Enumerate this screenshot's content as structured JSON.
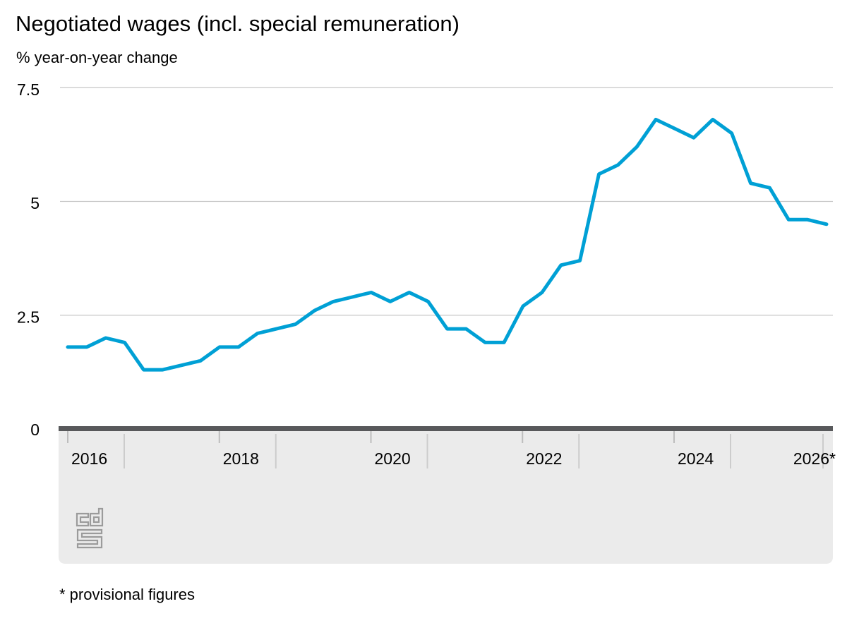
{
  "page": {
    "title": "Negotiated wages (incl. special remuneration)",
    "subtitle": "% year-on-year change",
    "footnote": "* provisional figures"
  },
  "branding": {
    "logo": "cbs-logo"
  },
  "style": {
    "line_color": "#00a0d5",
    "axis_bar_color": "#58595b",
    "band_color": "#ebebeb",
    "grid_color": "#c6c6c6",
    "short_tick_color": "#bdbdbd",
    "long_tick_color": "#cccccc",
    "logo_color": "#9b9b9b",
    "text_color": "#000000"
  },
  "chart_data": {
    "type": "line",
    "title": "Negotiated wages (incl. special remuneration)",
    "ylabel": "% year-on-year change",
    "series_name": "Negotiated wages (incl. special remuneration)",
    "grid": "horizontal",
    "legend": "none",
    "ylim": [
      0,
      7.5
    ],
    "yticks": [
      0,
      2.5,
      5,
      7.5
    ],
    "ytick_labels": [
      "0",
      "2.5",
      "5",
      "7.5"
    ],
    "x_axis_labels": [
      "2016",
      "2018",
      "2020",
      "2022",
      "2024",
      "2026*"
    ],
    "x": [
      "2016 Q1",
      "2016 Q2",
      "2016 Q3",
      "2016 Q4",
      "2017 Q1",
      "2017 Q2",
      "2017 Q3",
      "2017 Q4",
      "2018 Q1",
      "2018 Q2",
      "2018 Q3",
      "2018 Q4",
      "2019 Q1",
      "2019 Q2",
      "2019 Q3",
      "2019 Q4",
      "2020 Q1",
      "2020 Q2",
      "2020 Q3",
      "2020 Q4",
      "2021 Q1",
      "2021 Q2",
      "2021 Q3",
      "2021 Q4",
      "2022 Q1",
      "2022 Q2",
      "2022 Q3",
      "2022 Q4",
      "2023 Q1",
      "2023 Q2",
      "2023 Q3",
      "2023 Q4",
      "2024 Q1",
      "2024 Q2",
      "2024 Q3",
      "2024 Q4",
      "2025 Q1",
      "2025 Q2",
      "2025 Q3",
      "2025 Q4",
      "2026 Q1"
    ],
    "values": [
      1.8,
      1.8,
      2.0,
      1.9,
      1.3,
      1.3,
      1.4,
      1.5,
      1.8,
      1.8,
      2.1,
      2.2,
      2.3,
      2.6,
      2.8,
      2.9,
      3.0,
      2.8,
      3.0,
      2.8,
      2.2,
      2.2,
      1.9,
      1.9,
      2.7,
      3.0,
      3.6,
      3.7,
      5.6,
      5.8,
      6.2,
      6.8,
      6.6,
      6.4,
      6.8,
      6.5,
      5.4,
      5.3,
      4.6,
      4.6,
      4.5
    ],
    "provisional_note": "* provisional figures"
  }
}
